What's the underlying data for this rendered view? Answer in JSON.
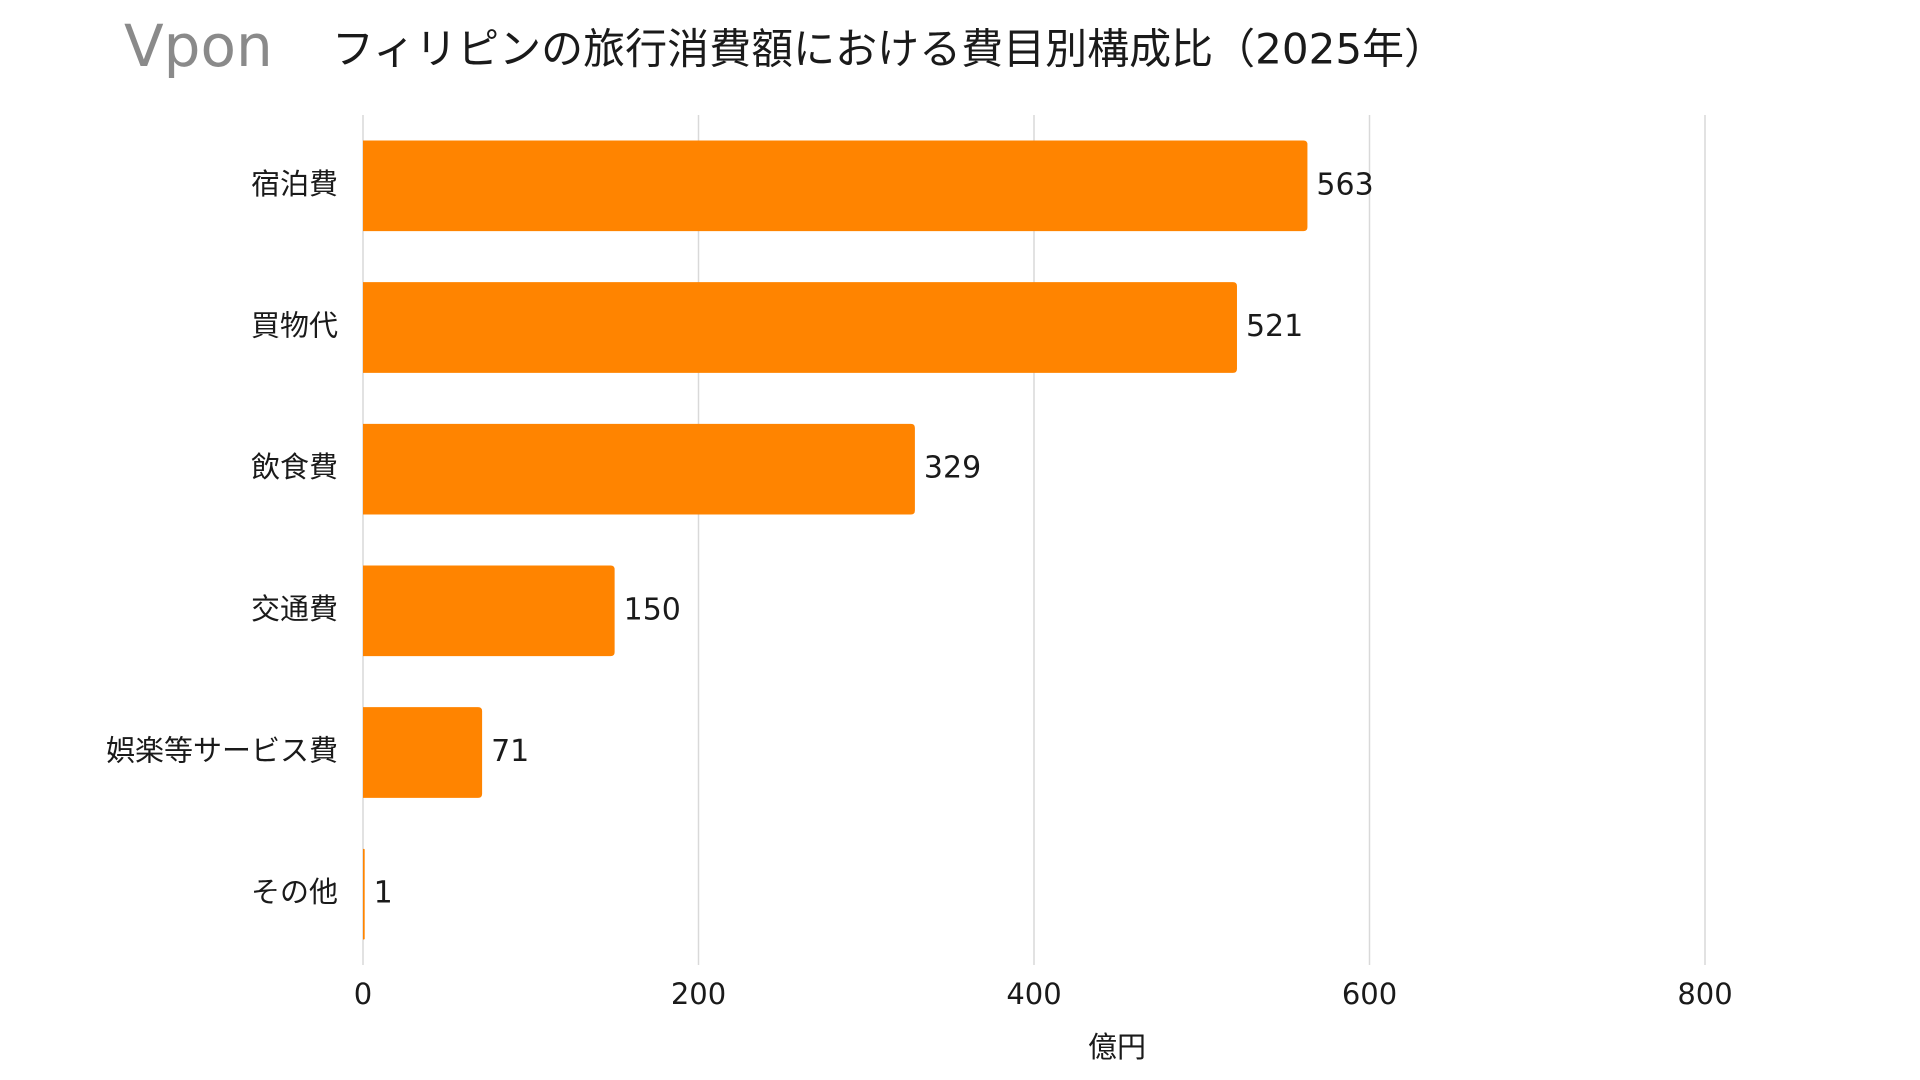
{
  "logo": "Vpon",
  "chart_data": {
    "type": "bar",
    "orientation": "horizontal",
    "title": "フィリピンの旅行消費額における費目別構成比（2025年）",
    "x_label": "億円",
    "categories": [
      "宿泊費",
      "買物代",
      "飲食費",
      "交通費",
      "娯楽等サービス費",
      "その他"
    ],
    "values": [
      563,
      521,
      329,
      150,
      71,
      1
    ],
    "color": "#ff8400",
    "xlim": [
      0,
      800
    ],
    "xticks": [
      0,
      200,
      400,
      600,
      800
    ],
    "grid": true
  }
}
